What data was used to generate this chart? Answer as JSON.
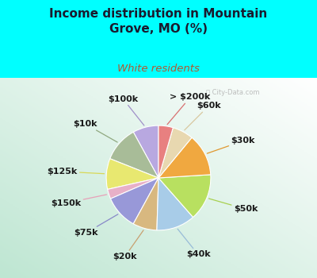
{
  "title": "Income distribution in Mountain\nGrove, MO (%)",
  "subtitle": "White residents",
  "title_color": "#1a1a2e",
  "subtitle_color": "#b05a30",
  "background_color": "#00ffff",
  "labels": [
    "$100k",
    "$10k",
    "$125k",
    "$150k",
    "$75k",
    "$20k",
    "$40k",
    "$50k",
    "$30k",
    "$60k",
    "> $200k"
  ],
  "values": [
    8.0,
    11.0,
    9.5,
    3.0,
    10.5,
    7.5,
    12.0,
    14.5,
    13.0,
    6.5,
    4.5
  ],
  "colors": [
    "#b8a8e0",
    "#a8bc98",
    "#e8e870",
    "#e8b0c8",
    "#9898d8",
    "#d8b880",
    "#a8cce8",
    "#b8e060",
    "#f0a840",
    "#e8d8b0",
    "#e88080"
  ],
  "line_colors": [
    "#a090c8",
    "#90a880",
    "#d8d858",
    "#e8a0b8",
    "#8888c8",
    "#c8a070",
    "#98bcd8",
    "#a8d050",
    "#e09830",
    "#d8c8a0",
    "#d87070"
  ],
  "wedge_edge_color": "white",
  "label_fontsize": 8,
  "label_color": "#1a1a1a",
  "startangle": 90
}
